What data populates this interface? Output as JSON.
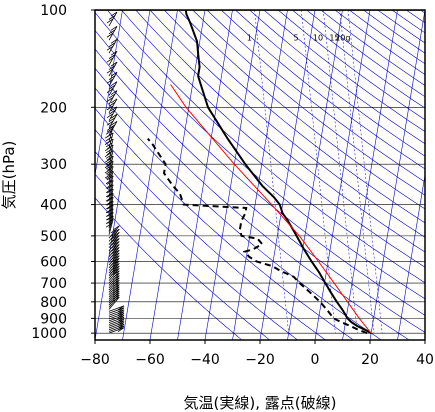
{
  "chart_data": {
    "type": "line",
    "chart_kind": "skew-T log-P thermodynamic diagram",
    "xlabel": "気温(実線), 露点(破線)",
    "ylabel": "気圧(hPa)",
    "x_ticks": [
      "−80",
      "−60",
      "−40",
      "−20",
      "0",
      "20",
      "40"
    ],
    "y_ticks": [
      "100",
      "200",
      "300",
      "400",
      "500",
      "600",
      "700",
      "800",
      "900",
      "1000"
    ],
    "x_tick_values": [
      -80,
      -60,
      -40,
      -20,
      0,
      20,
      40
    ],
    "y_tick_values": [
      100,
      200,
      300,
      400,
      500,
      600,
      700,
      800,
      900,
      1000
    ],
    "xlim": [
      -80,
      40
    ],
    "ylim_hPa": [
      1050,
      100
    ],
    "y_scale": "log",
    "grid": true,
    "mixing_ratio_labels": [
      "1",
      "5",
      "10",
      "15",
      "20g"
    ],
    "mixing_ratio_label_temps": [
      -42,
      -25,
      -17,
      -11,
      -8
    ],
    "isotherm_skew": 55,
    "series": [
      {
        "role": "temperature",
        "style": "solid",
        "color": "#000000",
        "points": [
          [
            1000,
            20
          ],
          [
            980,
            18
          ],
          [
            950,
            14.5
          ],
          [
            925,
            12.2
          ],
          [
            900,
            10.5
          ],
          [
            850,
            8.3
          ],
          [
            800,
            5.6
          ],
          [
            750,
            3
          ],
          [
            700,
            0.3
          ],
          [
            650,
            -2.5
          ],
          [
            600,
            -6
          ],
          [
            550,
            -9.5
          ],
          [
            500,
            -13
          ],
          [
            450,
            -17
          ],
          [
            425,
            -19.5
          ],
          [
            400,
            -21
          ],
          [
            380,
            -23.5
          ],
          [
            350,
            -28.5
          ],
          [
            300,
            -36
          ],
          [
            250,
            -44
          ],
          [
            200,
            -53
          ],
          [
            160,
            -58.5
          ],
          [
            150,
            -58.5
          ],
          [
            140,
            -59.5
          ],
          [
            125,
            -61
          ],
          [
            110,
            -64.5
          ],
          [
            103,
            -66.5
          ],
          [
            100,
            -67
          ]
        ]
      },
      {
        "role": "dewpoint",
        "style": "dashed",
        "color": "#000000",
        "points": [
          [
            1000,
            18.5
          ],
          [
            975,
            15
          ],
          [
            950,
            12
          ],
          [
            925,
            8.5
          ],
          [
            900,
            5.5
          ],
          [
            850,
            2.7
          ],
          [
            800,
            -0.5
          ],
          [
            750,
            -4.5
          ],
          [
            700,
            -9
          ],
          [
            670,
            -11.5
          ],
          [
            640,
            -17
          ],
          [
            620,
            -20
          ],
          [
            600,
            -26
          ],
          [
            580,
            -29
          ],
          [
            560,
            -31
          ],
          [
            550,
            -28
          ],
          [
            530,
            -25
          ],
          [
            510,
            -27
          ],
          [
            500,
            -33
          ],
          [
            480,
            -34
          ],
          [
            450,
            -34
          ],
          [
            425,
            -33
          ],
          [
            410,
            -33
          ],
          [
            400,
            -56
          ],
          [
            370,
            -58
          ],
          [
            350,
            -61
          ],
          [
            320,
            -65
          ],
          [
            300,
            -65
          ],
          [
            260,
            -71
          ],
          [
            250,
            -73
          ]
        ]
      },
      {
        "role": "parcel",
        "style": "solid",
        "color": "#ff0000",
        "points": [
          [
            1000,
            20
          ],
          [
            900,
            14.8
          ],
          [
            800,
            9.5
          ],
          [
            700,
            3.5
          ],
          [
            600,
            -3.5
          ],
          [
            500,
            -12
          ],
          [
            400,
            -24
          ],
          [
            300,
            -40
          ],
          [
            200,
            -61
          ],
          [
            170,
            -68
          ]
        ]
      }
    ],
    "wind_barbs_present": true,
    "colors": {
      "background": "#ffffff",
      "isotherm": "#0000cc",
      "dry_adiabat": "#0000cc",
      "mixing_ratio": "#0000cc",
      "pressure_grid": "#000000",
      "parcel": "#ff0000"
    }
  }
}
